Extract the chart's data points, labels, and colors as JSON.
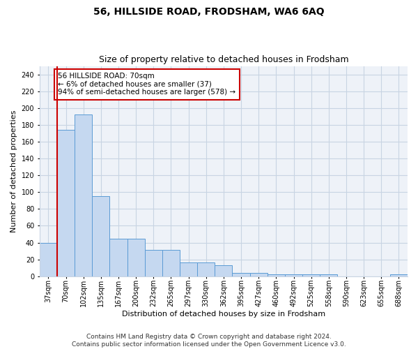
{
  "title": "56, HILLSIDE ROAD, FRODSHAM, WA6 6AQ",
  "subtitle": "Size of property relative to detached houses in Frodsham",
  "xlabel": "Distribution of detached houses by size in Frodsham",
  "ylabel": "Number of detached properties",
  "bar_labels": [
    "37sqm",
    "70sqm",
    "102sqm",
    "135sqm",
    "167sqm",
    "200sqm",
    "232sqm",
    "265sqm",
    "297sqm",
    "330sqm",
    "362sqm",
    "395sqm",
    "427sqm",
    "460sqm",
    "492sqm",
    "525sqm",
    "558sqm",
    "590sqm",
    "623sqm",
    "655sqm",
    "688sqm"
  ],
  "bar_values": [
    40,
    174,
    192,
    95,
    45,
    45,
    31,
    31,
    16,
    16,
    13,
    4,
    4,
    2,
    2,
    2,
    2,
    0,
    0,
    0,
    2
  ],
  "bar_color": "#c5d8f0",
  "bar_edge_color": "#5b9bd5",
  "vline_color": "#cc0000",
  "annotation_text": "56 HILLSIDE ROAD: 70sqm\n← 6% of detached houses are smaller (37)\n94% of semi-detached houses are larger (578) →",
  "annotation_box_color": "#ffffff",
  "annotation_box_edge": "#cc0000",
  "ylim": [
    0,
    250
  ],
  "yticks": [
    0,
    20,
    40,
    60,
    80,
    100,
    120,
    140,
    160,
    180,
    200,
    220,
    240
  ],
  "grid_color": "#c8d4e3",
  "background_color": "#ffffff",
  "plot_bg_color": "#eef2f8",
  "footer_line1": "Contains HM Land Registry data © Crown copyright and database right 2024.",
  "footer_line2": "Contains public sector information licensed under the Open Government Licence v3.0.",
  "title_fontsize": 10,
  "subtitle_fontsize": 9,
  "xlabel_fontsize": 8,
  "ylabel_fontsize": 8,
  "tick_fontsize": 7,
  "annotation_fontsize": 7.5,
  "footer_fontsize": 6.5
}
